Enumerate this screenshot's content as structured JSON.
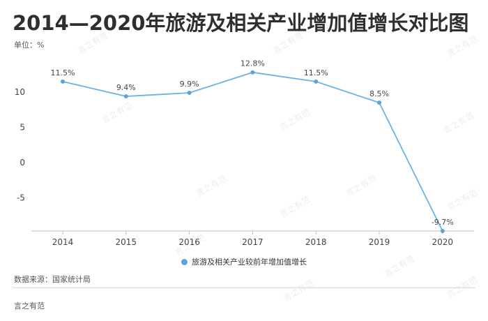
{
  "title": "2014—2020年旅游及相关产业增加值增长对比图",
  "unit_label": "单位：%",
  "source": "数据来源：国家统计局",
  "brand": "言之有范",
  "watermark": "言之有范",
  "colors": {
    "line": "#6cb2e4",
    "dot": "#5aa4da",
    "axis": "#bdbdbd"
  },
  "chart_data": {
    "type": "line",
    "title": "2014—2020年旅游及相关产业增加值增长对比图",
    "xlabel": "",
    "ylabel": "单位：%",
    "categories": [
      "2014",
      "2015",
      "2016",
      "2017",
      "2018",
      "2019",
      "2020"
    ],
    "series": [
      {
        "name": "旅游及相关产业较前年增加值增长",
        "values": [
          11.5,
          9.4,
          9.9,
          12.8,
          11.5,
          8.5,
          -9.7
        ],
        "labels": [
          "11.5%",
          "9.4%",
          "9.9%",
          "12.8%",
          "11.5%",
          "8.5%",
          "-9.7%"
        ]
      }
    ],
    "y_ticks": [
      10,
      5,
      0,
      -5
    ],
    "y_tick_labels": [
      "10",
      "5",
      "0",
      "-5"
    ],
    "ylim": [
      -9.7,
      13
    ],
    "grid": false,
    "legend_position": "bottom"
  }
}
